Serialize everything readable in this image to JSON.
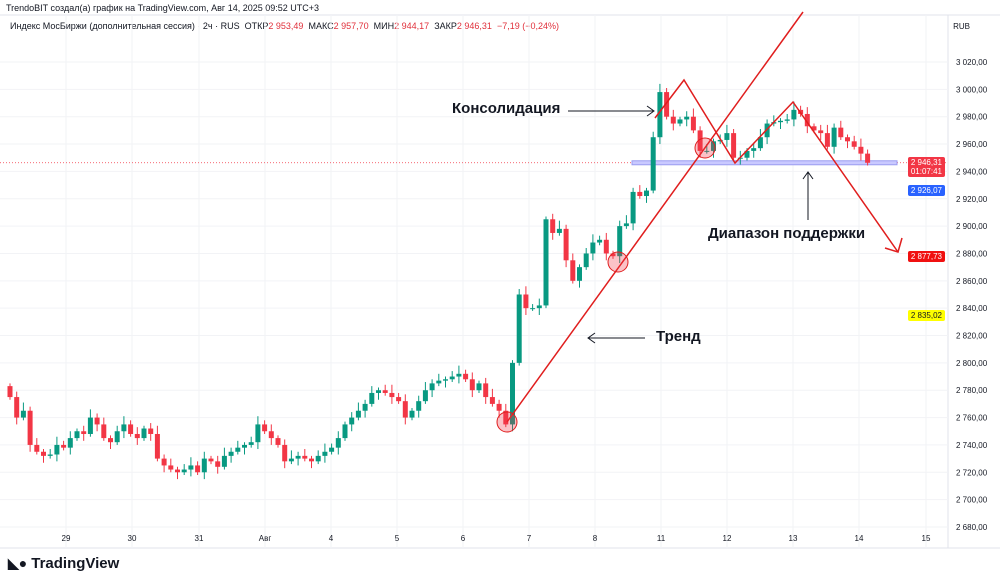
{
  "header": {
    "credit": "TrendoBIT создал(а) график на TradingView.com, Авг 14, 2025 09:52 UTC+3",
    "symbol": "Индекс МосБиржи (дополнительная сессия) · 2ч · RUS",
    "open_label": "ОТКР",
    "open": "2 953,49",
    "high_label": "МАКС",
    "high": "2 957,70",
    "low_label": "МИН",
    "low": "2 944,17",
    "close_label": "ЗАКР",
    "close": "2 946,31",
    "change": "−7,19 (−0,24%)",
    "currency": "RUB"
  },
  "annotations": {
    "consolidation": "Консолидация",
    "trend": "Тренд",
    "support": "Диапазон поддержки"
  },
  "price_labels": {
    "last": "2 946,31",
    "countdown": "01:07:41",
    "blue": "2 926,07",
    "red": "2 877,73",
    "yellow": "2 835,02"
  },
  "colors": {
    "up": "#089981",
    "down": "#f23645",
    "drawing": "#e01e1e",
    "support": "#9a9cf0",
    "label_blue": "#2962ff",
    "label_yellow": "#ffff00"
  },
  "logo": "TradingView",
  "chart_data": {
    "type": "candlestick",
    "ylim": [
      2680,
      3030
    ],
    "yticks": [
      "3 020,00",
      "3 000,00",
      "2 980,00",
      "2 960,00",
      "2 940,00",
      "2 920,00",
      "2 900,00",
      "2 880,00",
      "2 860,00",
      "2 840,00",
      "2 820,00",
      "2 800,00",
      "2 780,00",
      "2 760,00",
      "2 740,00",
      "2 720,00",
      "2 700,00",
      "2 680,00"
    ],
    "xticks": [
      "29",
      "30",
      "31",
      "Авг",
      "4",
      "5",
      "6",
      "7",
      "8",
      "11",
      "12",
      "13",
      "14",
      "15"
    ],
    "closes": [
      2775,
      2760,
      2765,
      2740,
      2735,
      2732,
      2733,
      2740,
      2738,
      2745,
      2750,
      2748,
      2760,
      2755,
      2745,
      2742,
      2750,
      2755,
      2748,
      2745,
      2752,
      2748,
      2730,
      2725,
      2722,
      2720,
      2722,
      2725,
      2720,
      2730,
      2728,
      2724,
      2732,
      2735,
      2738,
      2740,
      2742,
      2755,
      2750,
      2745,
      2740,
      2728,
      2730,
      2732,
      2730,
      2728,
      2732,
      2735,
      2738,
      2745,
      2755,
      2760,
      2765,
      2770,
      2778,
      2780,
      2778,
      2775,
      2772,
      2760,
      2765,
      2772,
      2780,
      2785,
      2787,
      2788,
      2790,
      2792,
      2788,
      2780,
      2785,
      2775,
      2770,
      2765,
      2755,
      2800,
      2850,
      2840,
      2840,
      2842,
      2905,
      2895,
      2898,
      2875,
      2860,
      2870,
      2880,
      2888,
      2890,
      2880,
      2878,
      2900,
      2902,
      2925,
      2922,
      2926,
      2965,
      2998,
      2980,
      2975,
      2978,
      2980,
      2970,
      2955,
      2955,
      2962,
      2963,
      2968,
      2950,
      2950,
      2955,
      2957,
      2965,
      2975,
      2976,
      2977,
      2978,
      2985,
      2982,
      2973,
      2970,
      2968,
      2958,
      2972,
      2965,
      2962,
      2958,
      2953,
      2946.31
    ]
  }
}
